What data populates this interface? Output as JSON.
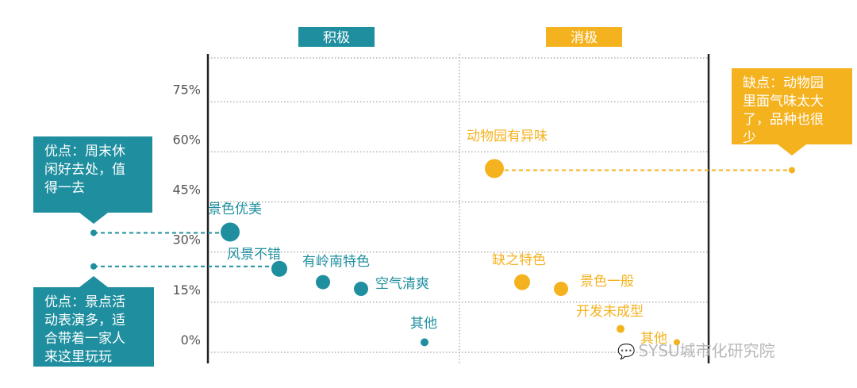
{
  "chart_data": {
    "type": "scatter",
    "groups": [
      {
        "label": "积极",
        "color": "#1f8fa0"
      },
      {
        "label": "消极",
        "color": "#f5b21f"
      }
    ],
    "yticks": [
      "0%",
      "15%",
      "30%",
      "45%",
      "60%",
      "75%"
    ],
    "ylim": [
      0,
      90
    ],
    "points": [
      {
        "label": "景色优美",
        "group": 0,
        "y": 36
      },
      {
        "label": "风景不错",
        "group": 0,
        "y": 25
      },
      {
        "label": "有岭南特色",
        "group": 0,
        "y": 21
      },
      {
        "label": "空气清爽",
        "group": 0,
        "y": 19
      },
      {
        "label": "其他",
        "group": 0,
        "y": 3
      },
      {
        "label": "动物园有异味",
        "group": 1,
        "y": 55
      },
      {
        "label": "缺之特色",
        "group": 1,
        "y": 21
      },
      {
        "label": "景色一般",
        "group": 1,
        "y": 19
      },
      {
        "label": "开发未成型",
        "group": 1,
        "y": 7
      },
      {
        "label": "其他",
        "group": 1,
        "y": 3
      }
    ]
  },
  "callouts": {
    "positive_1": "优点：周末休\n闲好去处，值\n得一去",
    "positive_2": "优点：景点活\n动表演多，适\n合带着一家人\n来这里玩玩",
    "negative_1": "缺点：动物园\n里面气味太大\n了，品种也很\n少"
  },
  "watermark": "SYSU城市化研究院"
}
